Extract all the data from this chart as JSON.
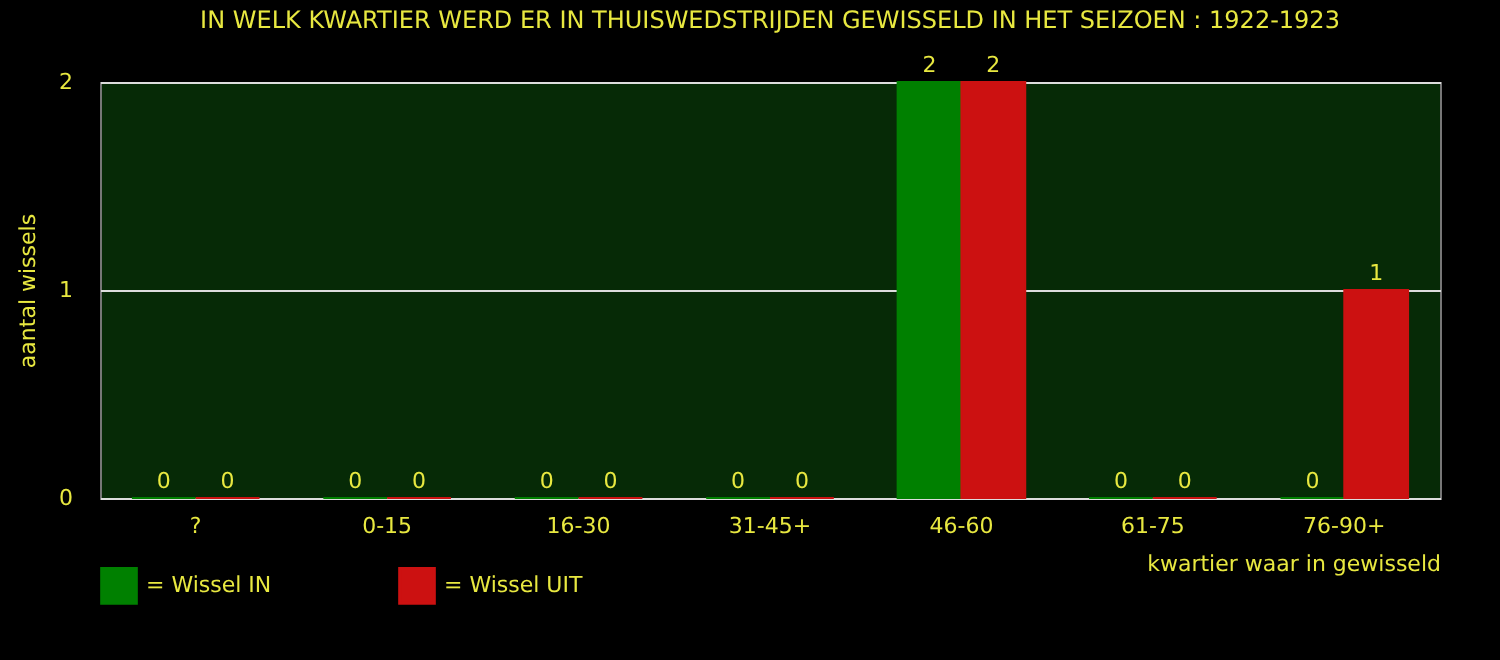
{
  "chart_data": {
    "type": "bar",
    "title": "IN WELK KWARTIER WERD ER IN THUISWEDSTRIJDEN GEWISSELD IN HET SEIZOEN : 1922-1923",
    "xlabel": "kwartier waar in gewisseld",
    "ylabel": "aantal wissels",
    "categories": [
      "?",
      "0-15",
      "16-30",
      "31-45+",
      "46-60",
      "61-75",
      "76-90+"
    ],
    "series": [
      {
        "name": "= Wissel IN",
        "color": "#008000",
        "values": [
          0,
          0,
          0,
          0,
          2,
          0,
          0
        ]
      },
      {
        "name": "= Wissel UIT",
        "color": "#cc1111",
        "values": [
          0,
          0,
          0,
          0,
          2,
          0,
          1
        ]
      }
    ],
    "ylim": [
      0,
      2
    ],
    "yticks": [
      0,
      1,
      2
    ],
    "grid": "y",
    "legend": "bottom",
    "data_labels": true
  }
}
